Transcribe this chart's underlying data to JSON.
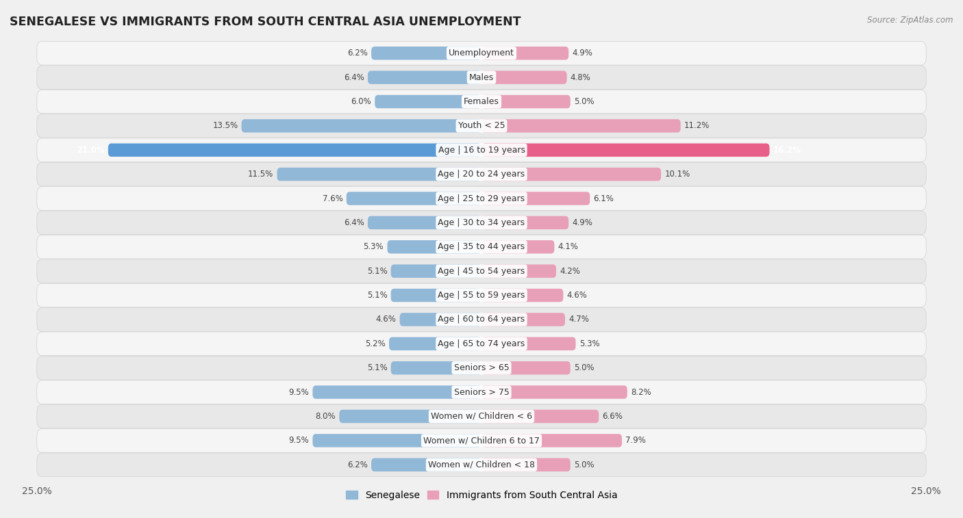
{
  "title": "SENEGALESE VS IMMIGRANTS FROM SOUTH CENTRAL ASIA UNEMPLOYMENT",
  "source": "Source: ZipAtlas.com",
  "categories": [
    "Unemployment",
    "Males",
    "Females",
    "Youth < 25",
    "Age | 16 to 19 years",
    "Age | 20 to 24 years",
    "Age | 25 to 29 years",
    "Age | 30 to 34 years",
    "Age | 35 to 44 years",
    "Age | 45 to 54 years",
    "Age | 55 to 59 years",
    "Age | 60 to 64 years",
    "Age | 65 to 74 years",
    "Seniors > 65",
    "Seniors > 75",
    "Women w/ Children < 6",
    "Women w/ Children 6 to 17",
    "Women w/ Children < 18"
  ],
  "senegalese": [
    6.2,
    6.4,
    6.0,
    13.5,
    21.0,
    11.5,
    7.6,
    6.4,
    5.3,
    5.1,
    5.1,
    4.6,
    5.2,
    5.1,
    9.5,
    8.0,
    9.5,
    6.2
  ],
  "immigrants": [
    4.9,
    4.8,
    5.0,
    11.2,
    16.2,
    10.1,
    6.1,
    4.9,
    4.1,
    4.2,
    4.6,
    4.7,
    5.3,
    5.0,
    8.2,
    6.6,
    7.9,
    5.0
  ],
  "senegalese_color": "#92b8d8",
  "immigrants_color": "#e8a0b8",
  "highlight_senegalese_color": "#5b9bd5",
  "highlight_immigrants_color": "#e8608a",
  "row_bg_light": "#f5f5f5",
  "row_bg_dark": "#e8e8e8",
  "row_separator_color": "#d0d0d0",
  "background_color": "#f0f0f0",
  "label_bg_color": "#ffffff",
  "xlim": 25.0,
  "bar_height": 0.55,
  "label_fontsize": 9.0,
  "value_fontsize": 8.5,
  "title_fontsize": 12.5,
  "legend_fontsize": 10,
  "highlight_row": 4
}
